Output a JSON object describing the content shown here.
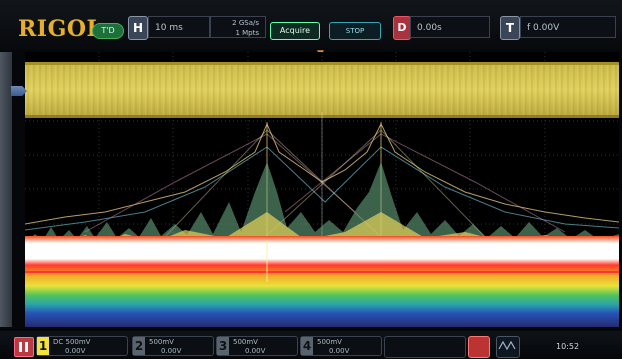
{
  "header": {
    "brand": "RIGOL",
    "run_state": "T'D",
    "horizontal_label": "H",
    "timebase": "10 ms",
    "sample_rate": "2 GSa/s",
    "mem_depth": "1 Mpts",
    "acquire_label": "Acquire",
    "stop_label": "STOP",
    "delay_label": "D",
    "delay": "0.00s",
    "trigger_label": "T",
    "trigger_info": "f 0.00V"
  },
  "bottom": {
    "channels": [
      {
        "num": "1",
        "line1": "DC 500mV",
        "line2": "0.00V",
        "active": true
      },
      {
        "num": "2",
        "line1": "500mV",
        "line2": "0.00V",
        "active": false
      },
      {
        "num": "3",
        "line1": "500mV",
        "line2": "0.00V",
        "active": false
      },
      {
        "num": "4",
        "line1": "500mV",
        "line2": "0.00V",
        "active": false
      }
    ],
    "clock": "10:52"
  },
  "colors": {
    "brand": "#e6ae2a",
    "ch1": "#f2e33c",
    "trace_band": "#d4c552"
  }
}
